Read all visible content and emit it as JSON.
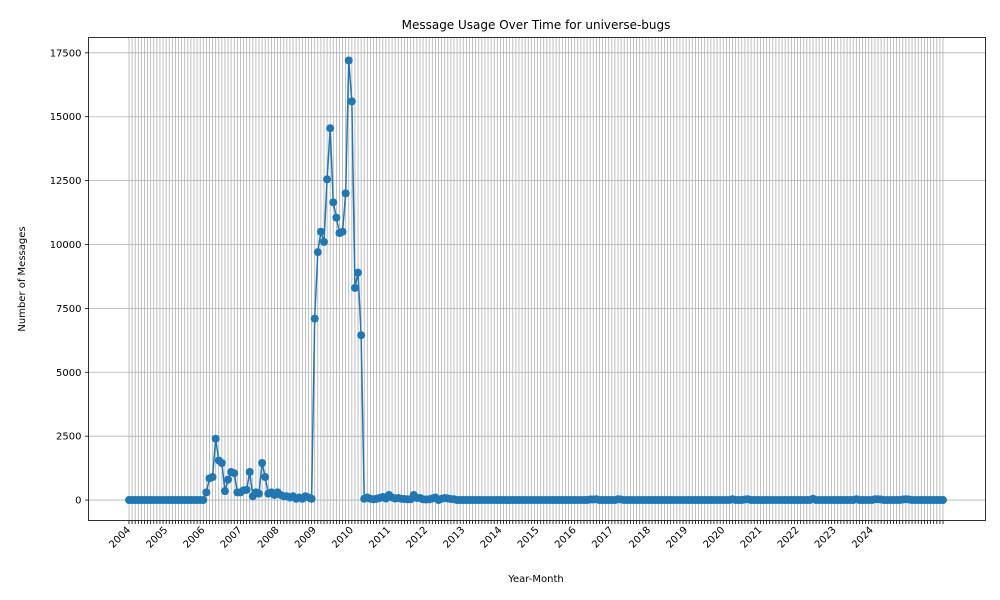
{
  "chart_data": {
    "type": "line",
    "title": "Message Usage Over Time for universe-bugs",
    "xlabel": "Year-Month",
    "ylabel": "Number of Messages",
    "x_start": "2004-01",
    "x_end": "2024-12",
    "year_tick_labels": [
      "2004",
      "2005",
      "2006",
      "2007",
      "2008",
      "2009",
      "2010",
      "2011",
      "2012",
      "2013",
      "2014",
      "2015",
      "2016",
      "2017",
      "2018",
      "2019",
      "2020",
      "2021",
      "2022",
      "2023",
      "2024"
    ],
    "ylim": [
      -800,
      18100
    ],
    "yticks": [
      0,
      2500,
      5000,
      7500,
      10000,
      12500,
      15000,
      17500
    ],
    "grid": true,
    "marker": "circle",
    "color": "#1f77b4",
    "series": [
      {
        "values": [
          0,
          0,
          0,
          0,
          0,
          0,
          0,
          0,
          0,
          0,
          0,
          0,
          0,
          0,
          0,
          0,
          0,
          0,
          0,
          0,
          0,
          0,
          0,
          0,
          0,
          300,
          850,
          900,
          2400,
          1550,
          1450,
          350,
          800,
          1100,
          1050,
          300,
          300,
          380,
          400,
          1100,
          150,
          300,
          250,
          1450,
          900,
          250,
          300,
          200,
          300,
          200,
          150,
          150,
          100,
          150,
          50,
          100,
          50,
          150,
          100,
          50,
          7100,
          9700,
          10500,
          10100,
          12550,
          14550,
          11650,
          11050,
          10450,
          10500,
          12000,
          17200,
          15600,
          8300,
          8900,
          6450,
          50,
          100,
          50,
          30,
          50,
          80,
          120,
          60,
          200,
          100,
          60,
          80,
          50,
          40,
          30,
          30,
          200,
          80,
          80,
          30,
          20,
          30,
          60,
          100,
          0,
          50,
          80,
          60,
          40,
          30,
          0,
          0,
          0,
          0,
          0,
          0,
          0,
          0,
          0,
          0,
          0,
          0,
          0,
          0,
          0,
          0,
          0,
          0,
          0,
          0,
          0,
          0,
          0,
          0,
          0,
          0,
          0,
          0,
          0,
          0,
          0,
          0,
          0,
          0,
          0,
          0,
          0,
          0,
          0,
          0,
          0,
          0,
          0,
          20,
          20,
          30,
          0,
          0,
          0,
          0,
          0,
          0,
          30,
          20,
          0,
          0,
          0,
          0,
          0,
          0,
          0,
          0,
          0,
          0,
          0,
          0,
          0,
          0,
          0,
          0,
          0,
          0,
          0,
          0,
          0,
          0,
          0,
          0,
          0,
          0,
          0,
          0,
          0,
          0,
          0,
          0,
          0,
          0,
          0,
          30,
          0,
          0,
          0,
          20,
          30,
          0,
          0,
          0,
          0,
          0,
          0,
          0,
          0,
          0,
          0,
          0,
          0,
          0,
          0,
          0,
          0,
          0,
          0,
          0,
          0,
          50,
          0,
          0,
          0,
          0,
          0,
          0,
          0,
          0,
          0,
          0,
          0,
          0,
          0,
          30,
          0,
          0,
          0,
          0,
          0,
          30,
          30,
          20,
          0,
          0,
          0,
          0,
          0,
          0,
          20,
          30,
          20,
          0,
          0,
          0,
          0,
          0,
          0,
          0,
          0,
          0,
          0,
          0
        ]
      }
    ]
  }
}
